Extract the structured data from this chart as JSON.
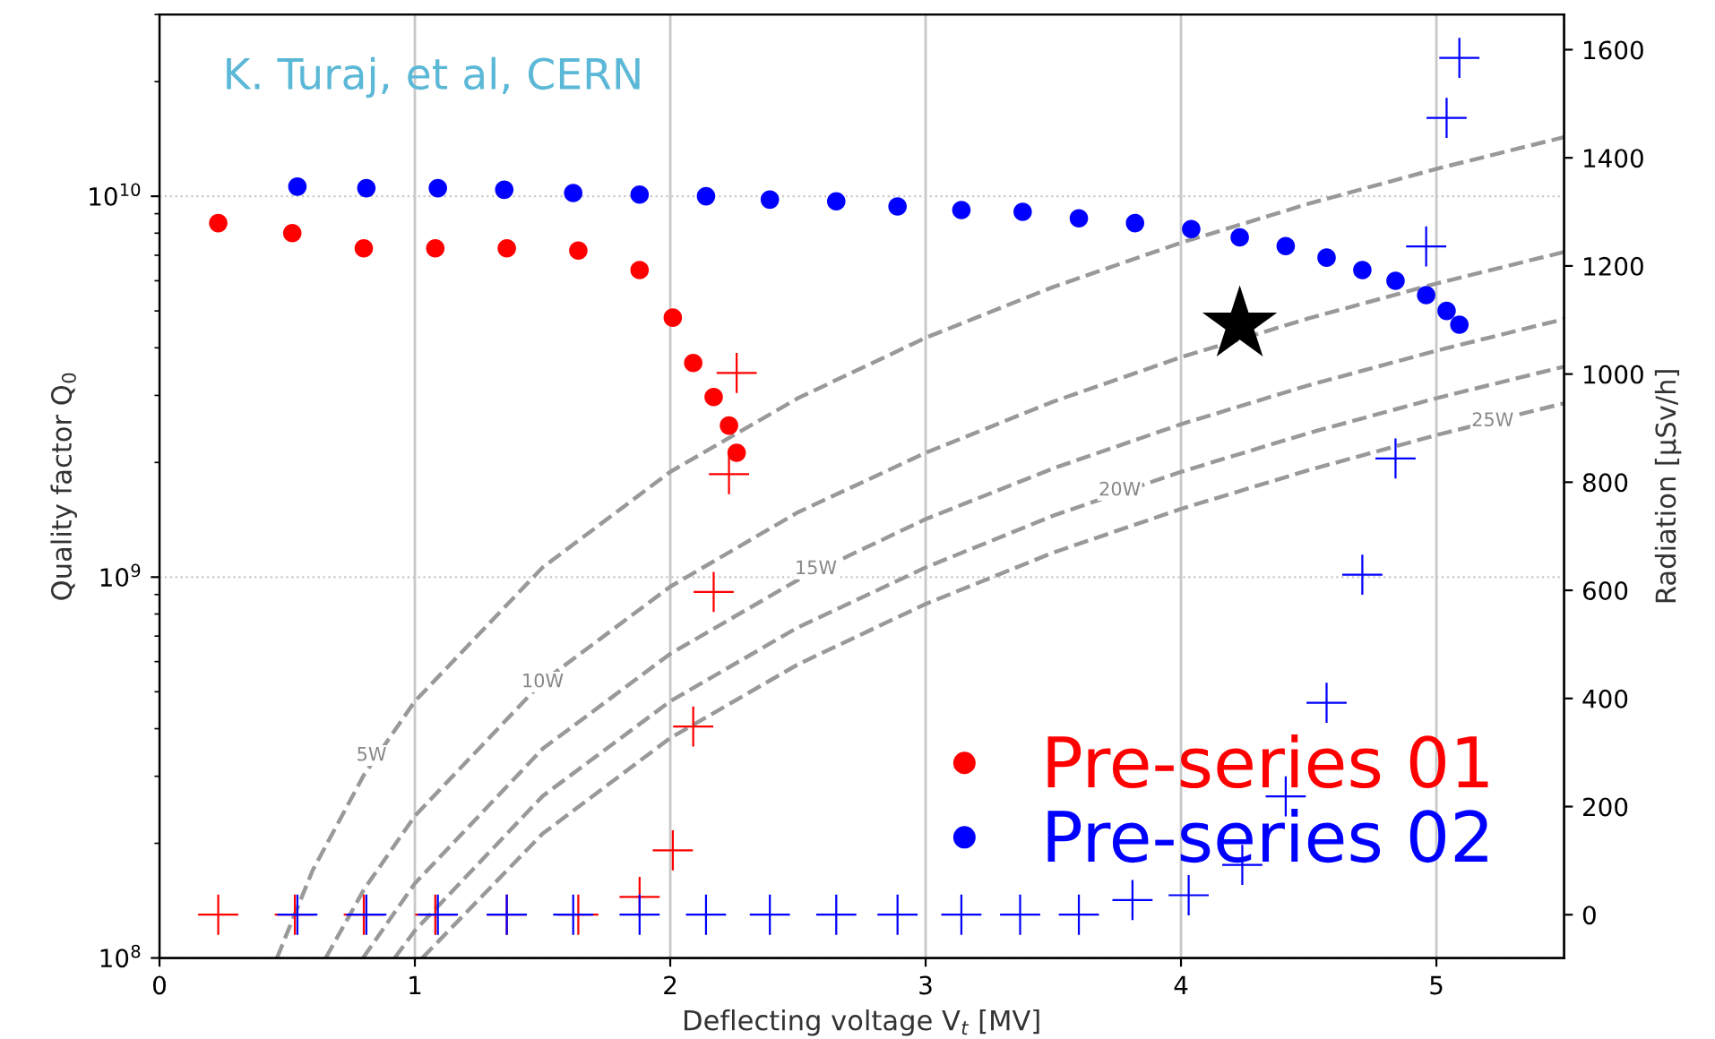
{
  "chart_data": {
    "type": "scatter",
    "xlabel": "Deflecting voltage V$_{t}$ [MV]",
    "ylabel": "Quality factor Q$_{0}$",
    "y2label": "Radiation [μSv/h]",
    "xlim": [
      0,
      5.5
    ],
    "xticks": [
      0,
      1,
      2,
      3,
      4,
      5
    ],
    "log": "y",
    "ylim": [
      100000000.0,
      30000000000.0
    ],
    "yticks": [
      {
        "value": 100000000.0,
        "label": "10$^{8}$"
      },
      {
        "value": 1000000000.0,
        "label": "10$^{9}$"
      },
      {
        "value": 10000000000.0,
        "label": "10$^{10}$"
      }
    ],
    "y2lim": [
      -80,
      1665
    ],
    "y2ticks": [
      0,
      200,
      400,
      600,
      800,
      1000,
      1200,
      1400,
      1600
    ],
    "grid": true,
    "legend": "bottom right",
    "series": [
      {
        "name": "Pre-series 01",
        "marker": "circle",
        "color": "#ff0000",
        "x": [
          0.23,
          0.52,
          0.8,
          1.08,
          1.36,
          1.64,
          1.88,
          2.01,
          2.09,
          2.17,
          2.23,
          2.26
        ],
        "values": [
          8500000000.0,
          8000000000.0,
          7300000000.0,
          7300000000.0,
          7300000000.0,
          7200000000.0,
          6400000000.0,
          4800000000.0,
          3650000000.0,
          2970000000.0,
          2500000000.0,
          2120000000.0
        ]
      },
      {
        "name": "Pre-series 02",
        "marker": "circle",
        "color": "#0000ff",
        "x": [
          0.54,
          0.81,
          1.09,
          1.35,
          1.62,
          1.88,
          2.14,
          2.39,
          2.65,
          2.89,
          3.14,
          3.38,
          3.6,
          3.82,
          4.04,
          4.23,
          4.41,
          4.57,
          4.71,
          4.84,
          4.96,
          5.04,
          5.09
        ],
        "values": [
          10600000000.0,
          10500000000.0,
          10500000000.0,
          10400000000.0,
          10200000000.0,
          10100000000.0,
          10000000000.0,
          9800000000.0,
          9700000000.0,
          9400000000.0,
          9200000000.0,
          9100000000.0,
          8750000000.0,
          8500000000.0,
          8200000000.0,
          7800000000.0,
          7400000000.0,
          6900000000.0,
          6400000000.0,
          6000000000.0,
          5500000000.0,
          5000000000.0,
          4600000000.0
        ]
      },
      {
        "marker": "cross",
        "color": "#ff0000",
        "axis": "y2",
        "x": [
          0.23,
          0.53,
          0.8,
          1.08,
          1.36,
          1.64,
          1.88,
          2.01,
          2.09,
          2.17,
          2.23,
          2.26
        ],
        "values": [
          0,
          0,
          0,
          0,
          0,
          0,
          33,
          119,
          348,
          597,
          815,
          1002
        ]
      },
      {
        "marker": "cross",
        "color": "#0000ff",
        "axis": "y2",
        "x": [
          0.54,
          0.81,
          1.09,
          1.36,
          1.62,
          1.88,
          2.14,
          2.39,
          2.65,
          2.89,
          3.14,
          3.37,
          3.6,
          3.81,
          4.03,
          4.24,
          4.41,
          4.57,
          4.71,
          4.84,
          4.96,
          5.04,
          5.09
        ],
        "values": [
          0,
          0,
          0,
          0,
          0,
          0,
          0,
          0,
          0,
          0,
          0,
          0,
          0,
          27,
          36,
          92,
          219,
          392,
          629,
          844,
          1236,
          1474,
          1585
        ]
      },
      {
        "marker": "star",
        "color": "#000000",
        "x": [
          4.23
        ],
        "values": [
          4600000000.0
        ]
      },
      {
        "type": "line",
        "line_style": "dashed",
        "color": "#999999",
        "x": [
          0.46,
          0.6,
          0.8,
          1,
          1.5,
          2,
          2.5,
          3,
          3.5,
          4,
          4.5,
          5,
          5.5
        ],
        "values": [
          100000000.0,
          170000000.0,
          302000000.0,
          472000000.0,
          1060000000.0,
          1890000000.0,
          2950000000.0,
          4250000000.0,
          5780000000.0,
          7550000000.0,
          9560000000.0,
          11800000000.0,
          14300000000.0
        ]
      },
      {
        "type": "line",
        "line_style": "dashed",
        "color": "#999999",
        "x": [
          0.651,
          0.8,
          1,
          1.5,
          2,
          2.5,
          3,
          3.5,
          4,
          4.5,
          5,
          5.5
        ],
        "values": [
          100000000.0,
          151000000.0,
          236000000.0,
          531000000.0,
          944000000.0,
          1480000000.0,
          2120000000.0,
          2890000000.0,
          3780000000.0,
          4780000000.0,
          5900000000.0,
          7140000000.0
        ]
      },
      {
        "type": "line",
        "line_style": "dashed",
        "color": "#999999",
        "x": [
          0.797,
          1,
          1.5,
          2,
          2.5,
          3,
          3.5,
          4,
          4.5,
          5,
          5.5
        ],
        "values": [
          100000000.0,
          157000000.0,
          354000000.0,
          629000000.0,
          983000000.0,
          1420000000.0,
          1930000000.0,
          2520000000.0,
          3190000000.0,
          3930000000.0,
          4760000000.0
        ]
      },
      {
        "type": "line",
        "line_style": "dashed",
        "color": "#999999",
        "x": [
          0.921,
          1,
          1.5,
          2,
          2.5,
          3,
          3.5,
          4,
          4.5,
          5,
          5.5
        ],
        "values": [
          100000000.0,
          118000000.0,
          266000000.0,
          472000000.0,
          738000000.0,
          1060000000.0,
          1450000000.0,
          1890000000.0,
          2390000000.0,
          2950000000.0,
          3570000000.0
        ]
      },
      {
        "type": "line",
        "line_style": "dashed",
        "color": "#999999",
        "x": [
          1.029,
          1.5,
          2,
          2.5,
          3,
          3.5,
          4,
          4.5,
          5,
          5.5
        ],
        "values": [
          100000000.0,
          212000000.0,
          378000000.0,
          590000000.0,
          850000000.0,
          1160000000.0,
          1510000000.0,
          1910000000.0,
          2360000000.0,
          2860000000.0
        ]
      }
    ],
    "annotations": [
      "K. Turaj, et al, CERN",
      {
        "text": "5W",
        "x": 0.83,
        "y": 340000000.0
      },
      {
        "text": "10W",
        "x": 1.5,
        "y": 530000000.0
      },
      {
        "text": "15W",
        "x": 2.57,
        "y": 1050000000.0
      },
      {
        "text": "20W",
        "x": 3.76,
        "y": 1690000000.0
      },
      {
        "text": "25W",
        "x": 5.22,
        "y": 2570000000.0
      }
    ]
  }
}
